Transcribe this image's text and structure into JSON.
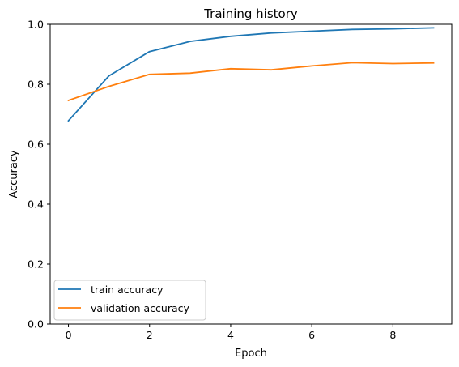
{
  "chart_data": {
    "type": "line",
    "title": "Training history",
    "xlabel": "Epoch",
    "ylabel": "Accuracy",
    "xlim": [
      -0.45,
      9.45
    ],
    "ylim": [
      0.0,
      1.0
    ],
    "x": [
      0,
      1,
      2,
      3,
      4,
      5,
      6,
      7,
      8,
      9
    ],
    "xticks": [
      0,
      2,
      4,
      6,
      8
    ],
    "yticks": [
      0.0,
      0.2,
      0.4,
      0.6,
      0.8,
      1.0
    ],
    "xtick_labels": [
      "0",
      "2",
      "4",
      "6",
      "8"
    ],
    "ytick_labels": [
      "0.0",
      "0.2",
      "0.4",
      "0.6",
      "0.8",
      "1.0"
    ],
    "grid": false,
    "legend_position": "lower-left",
    "series": [
      {
        "name": "train accuracy",
        "color": "#1f77b4",
        "values": [
          0.678,
          0.828,
          0.909,
          0.943,
          0.96,
          0.971,
          0.977,
          0.983,
          0.985,
          0.988
        ]
      },
      {
        "name": "validation accuracy",
        "color": "#ff7f0e",
        "values": [
          0.746,
          0.793,
          0.833,
          0.837,
          0.852,
          0.848,
          0.861,
          0.872,
          0.869,
          0.871
        ]
      }
    ]
  }
}
